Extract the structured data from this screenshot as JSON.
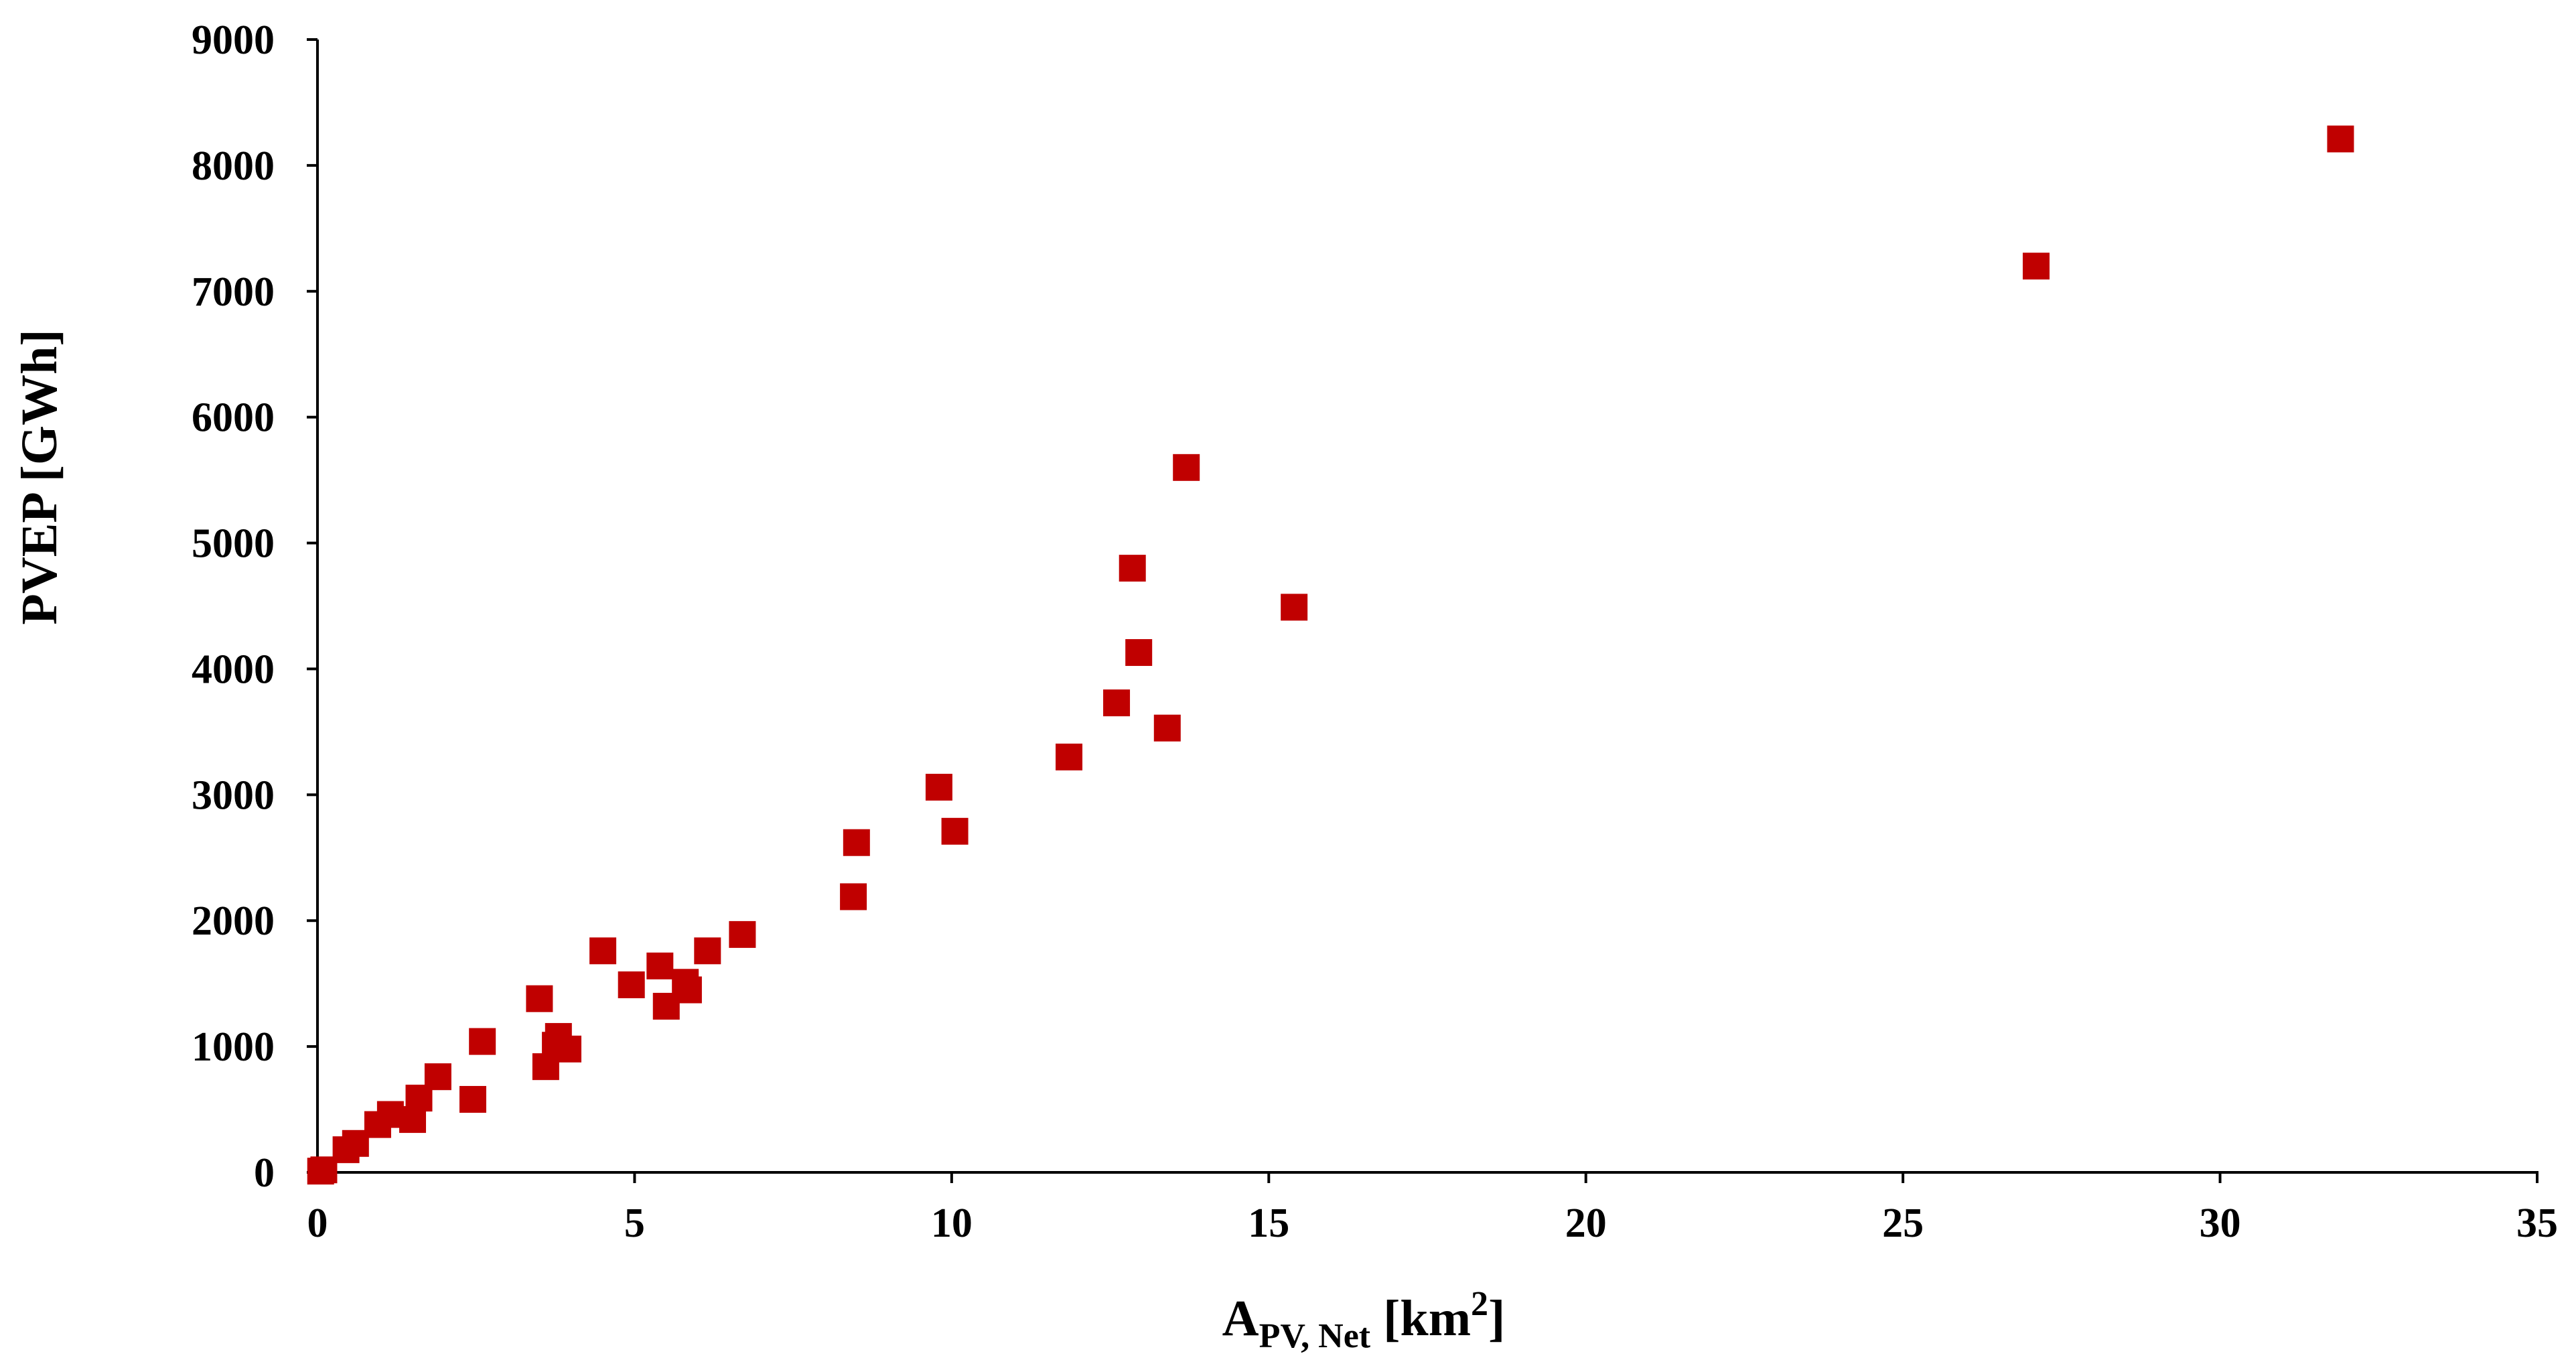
{
  "chart_data": {
    "type": "scatter",
    "xlabel_main": "A",
    "xlabel_sub": "PV, Net",
    "xlabel_unit": " [km",
    "xlabel_sup": "2",
    "xlabel_close": "]",
    "ylabel": "PVEP [GWh]",
    "xlim": [
      0,
      35
    ],
    "ylim": [
      0,
      9000
    ],
    "xticks": [
      "0",
      "5",
      "10",
      "15",
      "20",
      "25",
      "30",
      "35"
    ],
    "yticks": [
      "0",
      "1000",
      "2000",
      "3000",
      "4000",
      "5000",
      "6000",
      "7000",
      "8000",
      "9000"
    ],
    "grid": false,
    "legend": "none",
    "marker_color": "#C00000",
    "marker": "square",
    "points": [
      {
        "x": 0.05,
        "y": 10
      },
      {
        "x": 0.1,
        "y": 20
      },
      {
        "x": 0.45,
        "y": 180
      },
      {
        "x": 0.6,
        "y": 230
      },
      {
        "x": 0.95,
        "y": 380
      },
      {
        "x": 1.15,
        "y": 460
      },
      {
        "x": 1.5,
        "y": 420
      },
      {
        "x": 1.6,
        "y": 590
      },
      {
        "x": 1.9,
        "y": 760
      },
      {
        "x": 2.45,
        "y": 580
      },
      {
        "x": 2.6,
        "y": 1040
      },
      {
        "x": 3.5,
        "y": 1380
      },
      {
        "x": 3.6,
        "y": 840
      },
      {
        "x": 3.75,
        "y": 1010
      },
      {
        "x": 3.8,
        "y": 1080
      },
      {
        "x": 3.95,
        "y": 980
      },
      {
        "x": 4.5,
        "y": 1760
      },
      {
        "x": 4.95,
        "y": 1490
      },
      {
        "x": 5.4,
        "y": 1640
      },
      {
        "x": 5.5,
        "y": 1320
      },
      {
        "x": 5.8,
        "y": 1510
      },
      {
        "x": 5.85,
        "y": 1450
      },
      {
        "x": 6.15,
        "y": 1760
      },
      {
        "x": 6.7,
        "y": 1890
      },
      {
        "x": 8.45,
        "y": 2190
      },
      {
        "x": 8.5,
        "y": 2620
      },
      {
        "x": 9.8,
        "y": 3060
      },
      {
        "x": 10.05,
        "y": 2710
      },
      {
        "x": 11.85,
        "y": 3300
      },
      {
        "x": 12.6,
        "y": 3730
      },
      {
        "x": 12.85,
        "y": 4800
      },
      {
        "x": 12.95,
        "y": 4130
      },
      {
        "x": 13.4,
        "y": 3530
      },
      {
        "x": 13.7,
        "y": 5600
      },
      {
        "x": 15.4,
        "y": 4490
      },
      {
        "x": 27.1,
        "y": 7200
      },
      {
        "x": 31.9,
        "y": 8210
      }
    ]
  }
}
